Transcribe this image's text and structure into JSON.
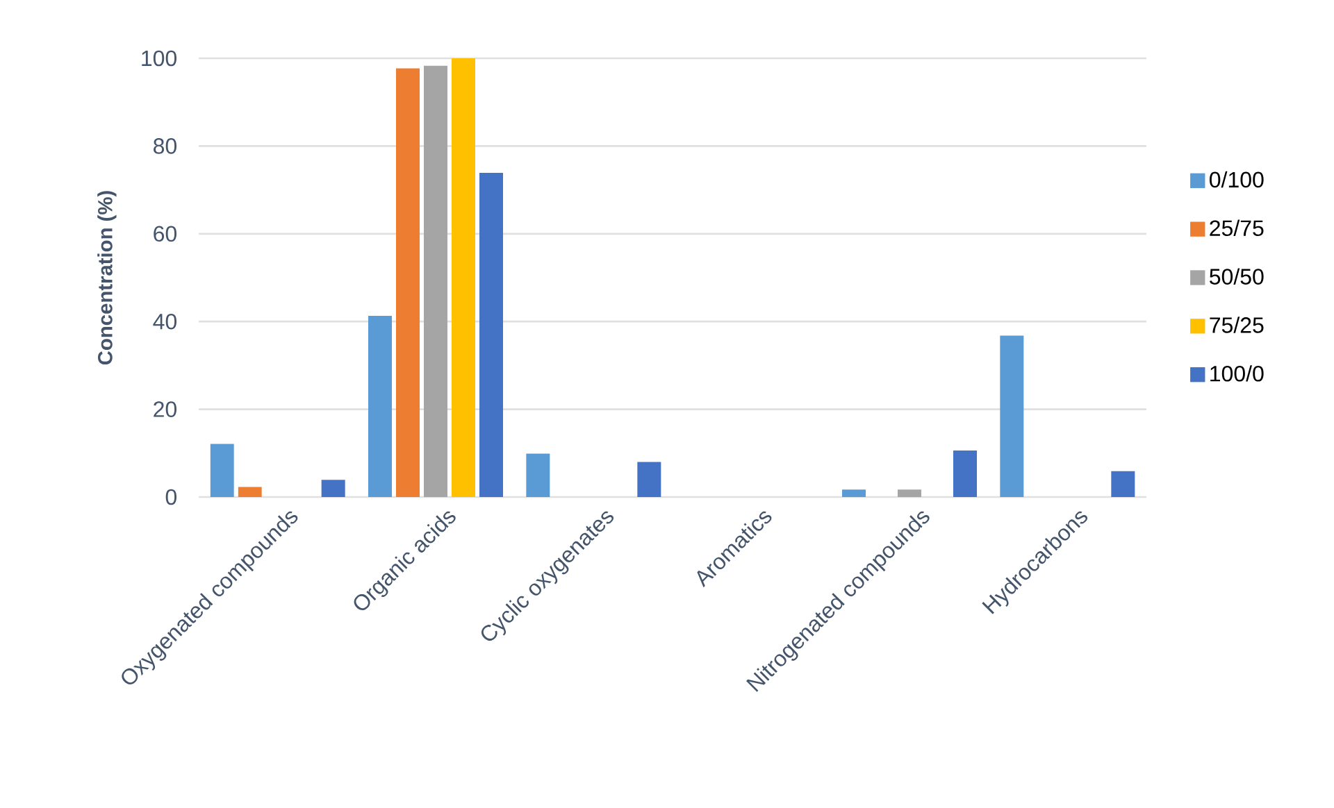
{
  "chart_data": {
    "type": "bar",
    "ylabel": "Concentration (%)",
    "categories": [
      "Oxygenated compounds",
      "Organic acids",
      "Cyclic oxygenates",
      "Aromatics",
      "Nitrogenated compounds",
      "Hydrocarbons"
    ],
    "series": [
      {
        "name": "0/100",
        "color": "#5b9bd5",
        "values": [
          12.1,
          41.3,
          9.9,
          0,
          1.7,
          36.8
        ]
      },
      {
        "name": "25/75",
        "color": "#ed7d31",
        "values": [
          2.3,
          97.7,
          0,
          0,
          0,
          0
        ]
      },
      {
        "name": "50/50",
        "color": "#a5a5a5",
        "values": [
          0,
          98.3,
          0,
          0,
          1.7,
          0
        ]
      },
      {
        "name": "75/25",
        "color": "#ffc000",
        "values": [
          0,
          100,
          0,
          0,
          0,
          0
        ]
      },
      {
        "name": "100/0",
        "color": "#4472c4",
        "values": [
          3.9,
          73.9,
          8.0,
          0,
          10.6,
          5.9
        ]
      }
    ],
    "ylim": [
      0,
      100
    ],
    "yticks": [
      0,
      20,
      40,
      60,
      80,
      100
    ],
    "grid": "y",
    "legend": "right"
  }
}
